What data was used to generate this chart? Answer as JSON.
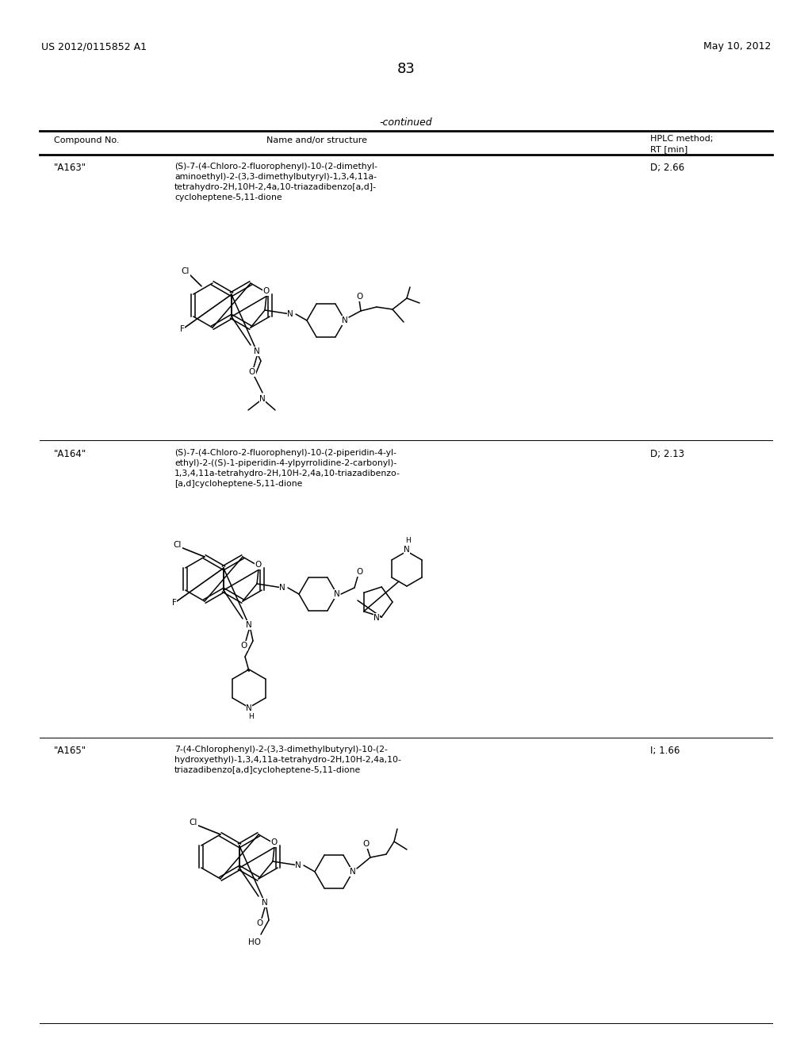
{
  "background_color": "#ffffff",
  "page_number": "83",
  "left_header": "US 2012/0115852 A1",
  "right_header": "May 10, 2012",
  "continued_label": "-continued",
  "col1_header": "Compound No.",
  "col2_header": "Name and/or structure",
  "col3_header_line1": "HPLC method;",
  "col3_header_line2": "RT [min]",
  "compounds": [
    {
      "id": "\"A163\"",
      "name_lines": [
        "(S)-7-(4-Chloro-2-fluorophenyl)-10-(2-dimethyl-",
        "aminoethyl)-2-(3,3-dimethylbutyryl)-1,3,4,11a-",
        "tetrahydro-2H,10H-2,4a,10-triazadibenzo[a,d]-",
        "cycloheptene-5,11-dione"
      ],
      "hplc": "D; 2.66"
    },
    {
      "id": "\"A164\"",
      "name_lines": [
        "(S)-7-(4-Chloro-2-fluorophenyl)-10-(2-piperidin-4-yl-",
        "ethyl)-2-((S)-1-piperidin-4-ylpyrrolidine-2-carbonyl)-",
        "1,3,4,11a-tetrahydro-2H,10H-2,4a,10-triazadibenzo-",
        "[a,d]cycloheptene-5,11-dione"
      ],
      "hplc": "D; 2.13"
    },
    {
      "id": "\"A165\"",
      "name_lines": [
        "7-(4-Chlorophenyl)-2-(3,3-dimethylbutyryl)-10-(2-",
        "hydroxyethyl)-1,3,4,11a-tetrahydro-2H,10H-2,4a,10-",
        "triazadibenzo[a,d]cycloheptene-5,11-dione"
      ],
      "hplc": "I; 1.66"
    }
  ]
}
